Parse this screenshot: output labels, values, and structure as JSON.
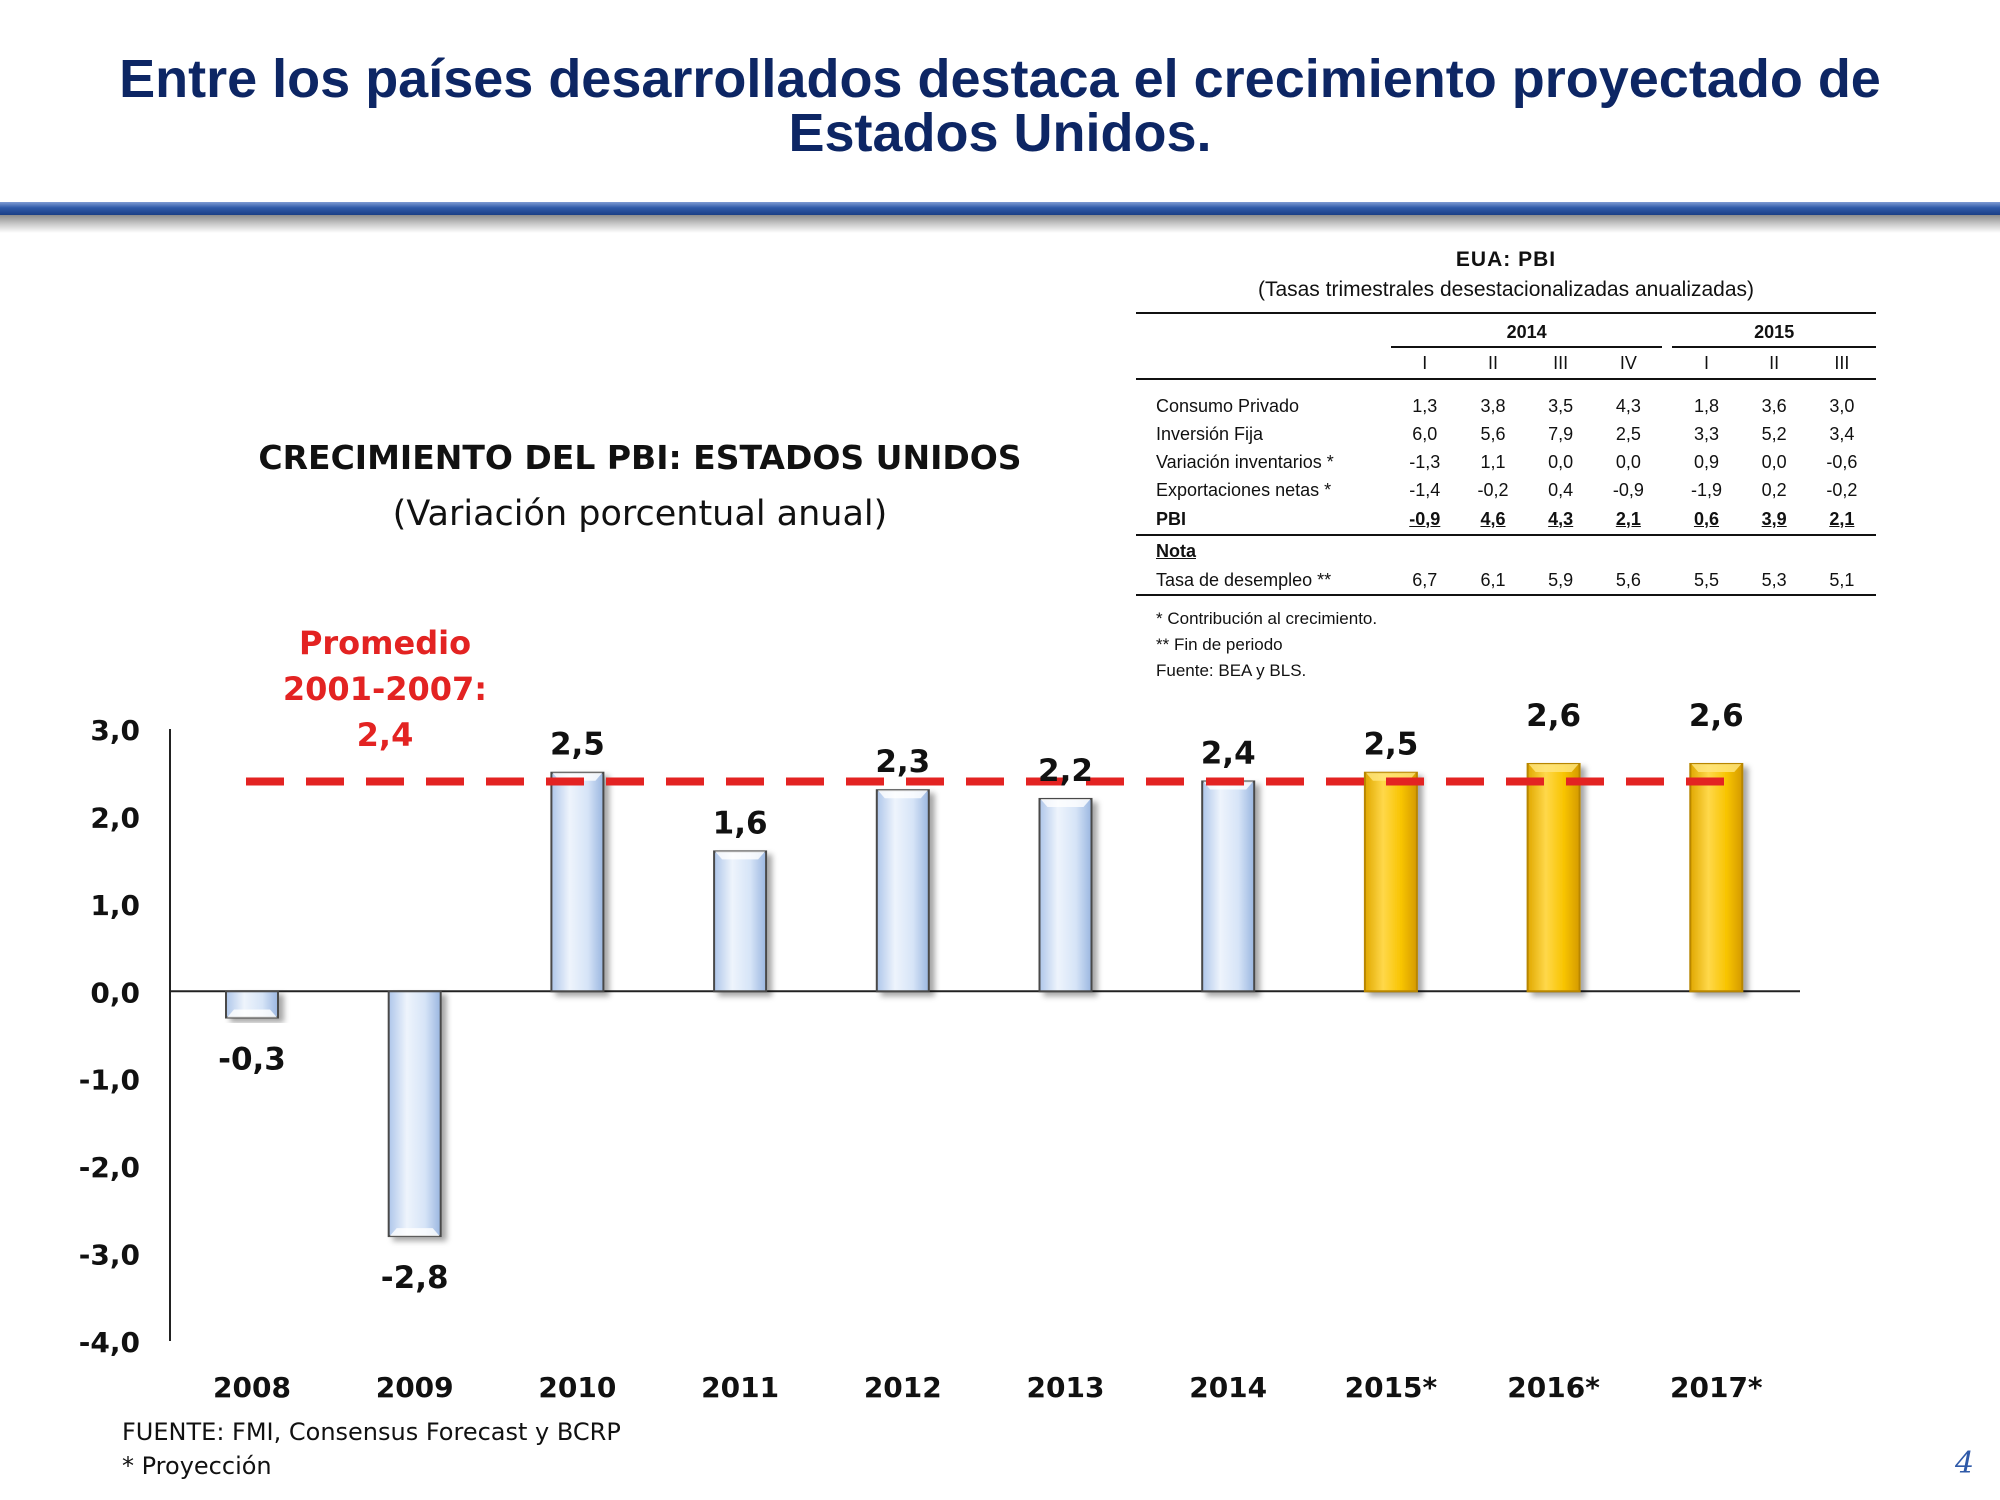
{
  "slide": {
    "title_line1": "Entre los países desarrollados destaca el crecimiento proyectado de",
    "title_line2": "Estados Unidos.",
    "page_number": "4"
  },
  "chart_data": {
    "type": "bar",
    "title": "CRECIMIENTO DEL PBI: ESTADOS UNIDOS",
    "subtitle": "(Variación porcentual anual)",
    "categories": [
      "2008",
      "2009",
      "2010",
      "2011",
      "2012",
      "2013",
      "2014",
      "2015*",
      "2016*",
      "2017*"
    ],
    "values": [
      -0.3,
      -2.8,
      2.5,
      1.6,
      2.3,
      2.2,
      2.4,
      2.5,
      2.6,
      2.6
    ],
    "value_labels": [
      "-0,3",
      "-2,8",
      "2,5",
      "1,6",
      "2,3",
      "2,2",
      "2,4",
      "2,5",
      "2,6",
      "2,6"
    ],
    "projected": [
      false,
      false,
      false,
      false,
      false,
      false,
      false,
      true,
      true,
      true
    ],
    "colors": {
      "actual": "#d6e4f7",
      "projected": "#f8c400",
      "average_line": "#e32322",
      "annotation": "#e32322"
    },
    "ylim": [
      -4.0,
      3.0
    ],
    "yticks": [
      3.0,
      2.0,
      1.0,
      0.0,
      -1.0,
      -2.0,
      -3.0,
      -4.0
    ],
    "ytick_labels": [
      "3,0",
      "2,0",
      "1,0",
      "0,0",
      "-1,0",
      "-2,0",
      "-3,0",
      "-4,0"
    ],
    "reference_line": {
      "value": 2.4,
      "style": "dashed",
      "label": [
        "Promedio",
        "2001-2007:",
        "2,4"
      ]
    },
    "xlabel": "",
    "ylabel": "",
    "grid": false,
    "legend": "none"
  },
  "table": {
    "title": "EUA: PBI",
    "subtitle": "(Tasas trimestrales desestacionalizadas anualizadas)",
    "years": [
      "2014",
      "2015"
    ],
    "quarters": [
      "I",
      "II",
      "III",
      "IV",
      "I",
      "II",
      "III"
    ],
    "rows": [
      {
        "label": "Consumo Privado",
        "values": [
          "1,3",
          "3,8",
          "3,5",
          "4,3",
          "1,8",
          "3,6",
          "3,0"
        ]
      },
      {
        "label": "Inversión Fija",
        "values": [
          "6,0",
          "5,6",
          "7,9",
          "2,5",
          "3,3",
          "5,2",
          "3,4"
        ]
      },
      {
        "label": "Variación inventarios *",
        "values": [
          "-1,3",
          "1,1",
          "0,0",
          "0,0",
          "0,9",
          "0,0",
          "-0,6"
        ]
      },
      {
        "label": "Exportaciones netas *",
        "values": [
          "-1,4",
          "-0,2",
          "0,4",
          "-0,9",
          "-1,9",
          "0,2",
          "-0,2"
        ]
      }
    ],
    "total_row": {
      "label": "PBI",
      "values": [
        "-0,9",
        "4,6",
        "4,3",
        "2,1",
        "0,6",
        "3,9",
        "2,1"
      ]
    },
    "note_heading": "Nota",
    "unemployment_row": {
      "label": "Tasa de desempleo **",
      "values": [
        "6,7",
        "6,1",
        "5,9",
        "5,6",
        "5,5",
        "5,3",
        "5,1"
      ]
    },
    "notes": [
      "* Contribución al crecimiento.",
      "** Fin de periodo",
      "Fuente: BEA y BLS."
    ]
  },
  "footer": {
    "source": "FUENTE: FMI, Consensus Forecast y BCRP",
    "projection_note": "* Proyección"
  }
}
